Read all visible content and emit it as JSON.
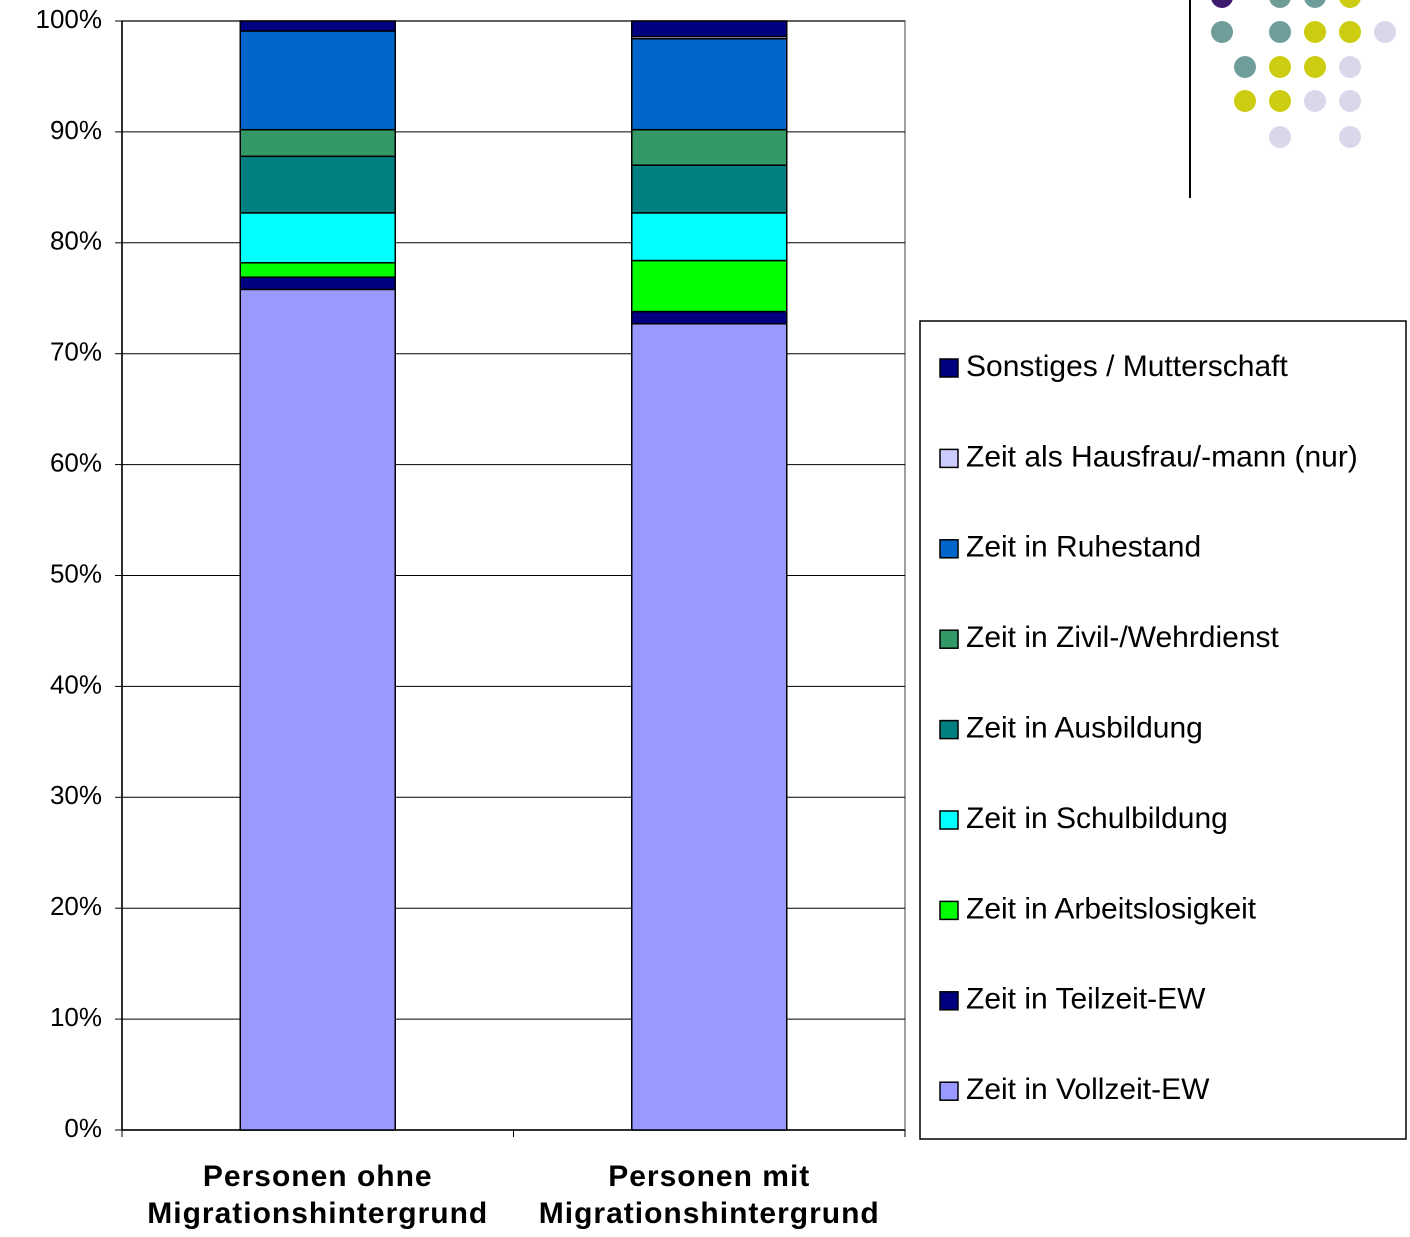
{
  "chart_data": {
    "type": "stacked_bar",
    "categories": [
      "Personen ohne Migrationshintergrund",
      "Personen mit Migrationshintergrund"
    ],
    "series": [
      {
        "name": "Zeit in Vollzeit-EW",
        "color": "#9999ff",
        "values": [
          75.8,
          72.7
        ]
      },
      {
        "name": "Zeit in Teilzeit-EW",
        "color": "#000080",
        "values": [
          1.1,
          1.1
        ]
      },
      {
        "name": "Zeit in Arbeitslosigkeit",
        "color": "#00ff00",
        "values": [
          1.3,
          4.6
        ]
      },
      {
        "name": "Zeit in Schulbildung",
        "color": "#00ffff",
        "values": [
          4.5,
          4.3
        ]
      },
      {
        "name": "Zeit in Ausbildung",
        "color": "#008080",
        "values": [
          5.1,
          4.3
        ]
      },
      {
        "name": "Zeit in Zivil-/Wehrdienst",
        "color": "#339966",
        "values": [
          2.4,
          3.2
        ]
      },
      {
        "name": "Zeit in Ruhestand",
        "color": "#0066cc",
        "values": [
          8.9,
          8.2
        ]
      },
      {
        "name": "Zeit als Hausfrau/-mann (nur)",
        "color": "#ccccff",
        "values": [
          0,
          0.2
        ]
      },
      {
        "name": "Sonstiges / Mutterschaft",
        "color": "#000080",
        "values": [
          0.9,
          1.4
        ]
      }
    ],
    "ylim": [
      0,
      100
    ],
    "yticks": [
      {
        "value": 0,
        "label": "0%"
      },
      {
        "value": 10,
        "label": "10%"
      },
      {
        "value": 20,
        "label": "20%"
      },
      {
        "value": 30,
        "label": "30%"
      },
      {
        "value": 40,
        "label": "40%"
      },
      {
        "value": 50,
        "label": "50%"
      },
      {
        "value": 60,
        "label": "60%"
      },
      {
        "value": 70,
        "label": "70%"
      },
      {
        "value": 80,
        "label": "80%"
      },
      {
        "value": 90,
        "label": "90%"
      },
      {
        "value": 100,
        "label": "100%"
      }
    ],
    "grid": true
  }
}
